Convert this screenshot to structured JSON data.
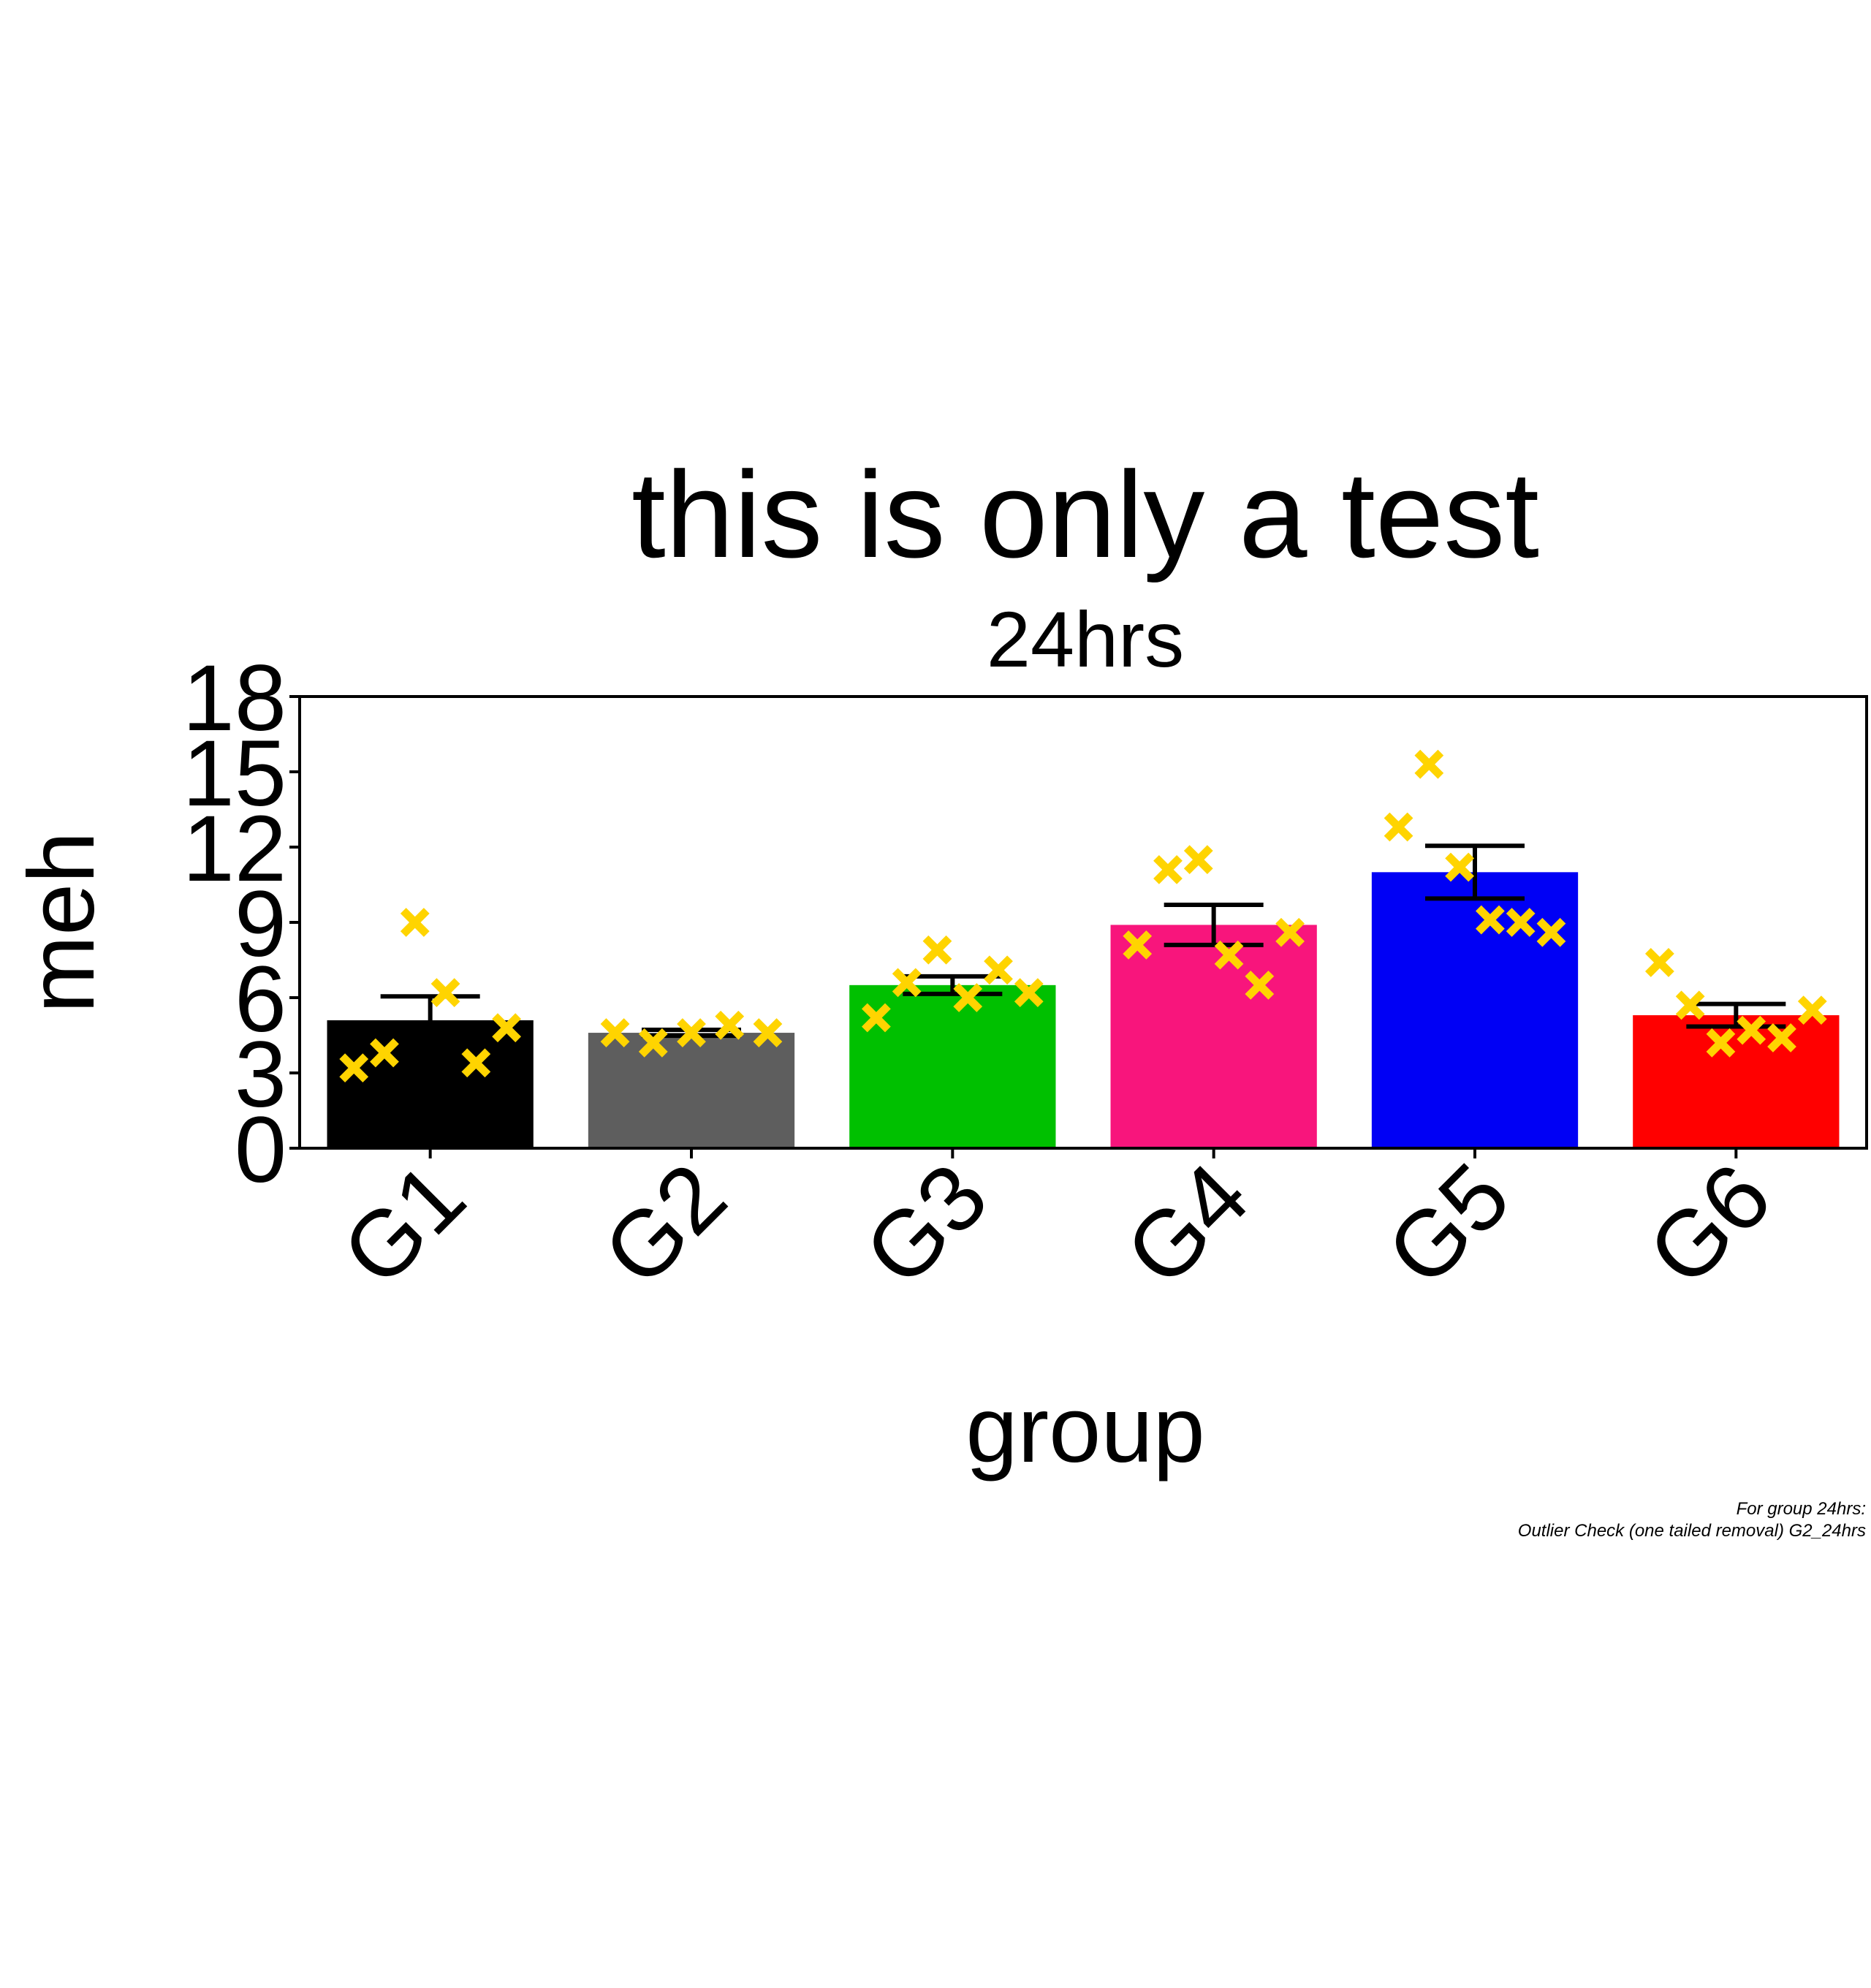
{
  "chart_data": {
    "type": "bar",
    "title": "this is only a test",
    "subtitle": "24hrs",
    "xlabel": "group",
    "ylabel": "meh",
    "ylim": [
      0,
      18
    ],
    "yticks": [
      "0",
      "3",
      "6",
      "9",
      "12",
      "15",
      "18"
    ],
    "categories": [
      "G1",
      "G2",
      "G3",
      "G4",
      "G5",
      "G6"
    ],
    "values": [
      5.1,
      4.6,
      6.5,
      8.9,
      11.0,
      5.3
    ],
    "errors": [
      0.95,
      0.12,
      0.35,
      0.8,
      1.05,
      0.45
    ],
    "bar_colors": [
      "#000000",
      "#5e5e5e",
      "#00c000",
      "#f8157c",
      "#0000f5",
      "#ff0000"
    ],
    "point_color": "#ffd400",
    "points": [
      [
        3.2,
        3.8,
        9.0,
        6.2,
        3.4,
        4.8
      ],
      [
        4.6,
        4.2,
        4.6,
        4.9,
        4.6
      ],
      [
        5.2,
        6.6,
        7.9,
        6.0,
        7.1,
        6.2
      ],
      [
        8.1,
        11.1,
        11.5,
        7.7,
        6.5,
        8.6
      ],
      [
        12.8,
        15.3,
        11.2,
        9.1,
        9.0,
        8.6
      ],
      [
        7.4,
        5.7,
        4.2,
        4.7,
        4.4,
        5.5
      ]
    ],
    "grid": false,
    "legend": "none"
  },
  "footnote": {
    "line1": "For group 24hrs:",
    "line2": "Outlier Check (one tailed removal) G2_24hrs"
  }
}
